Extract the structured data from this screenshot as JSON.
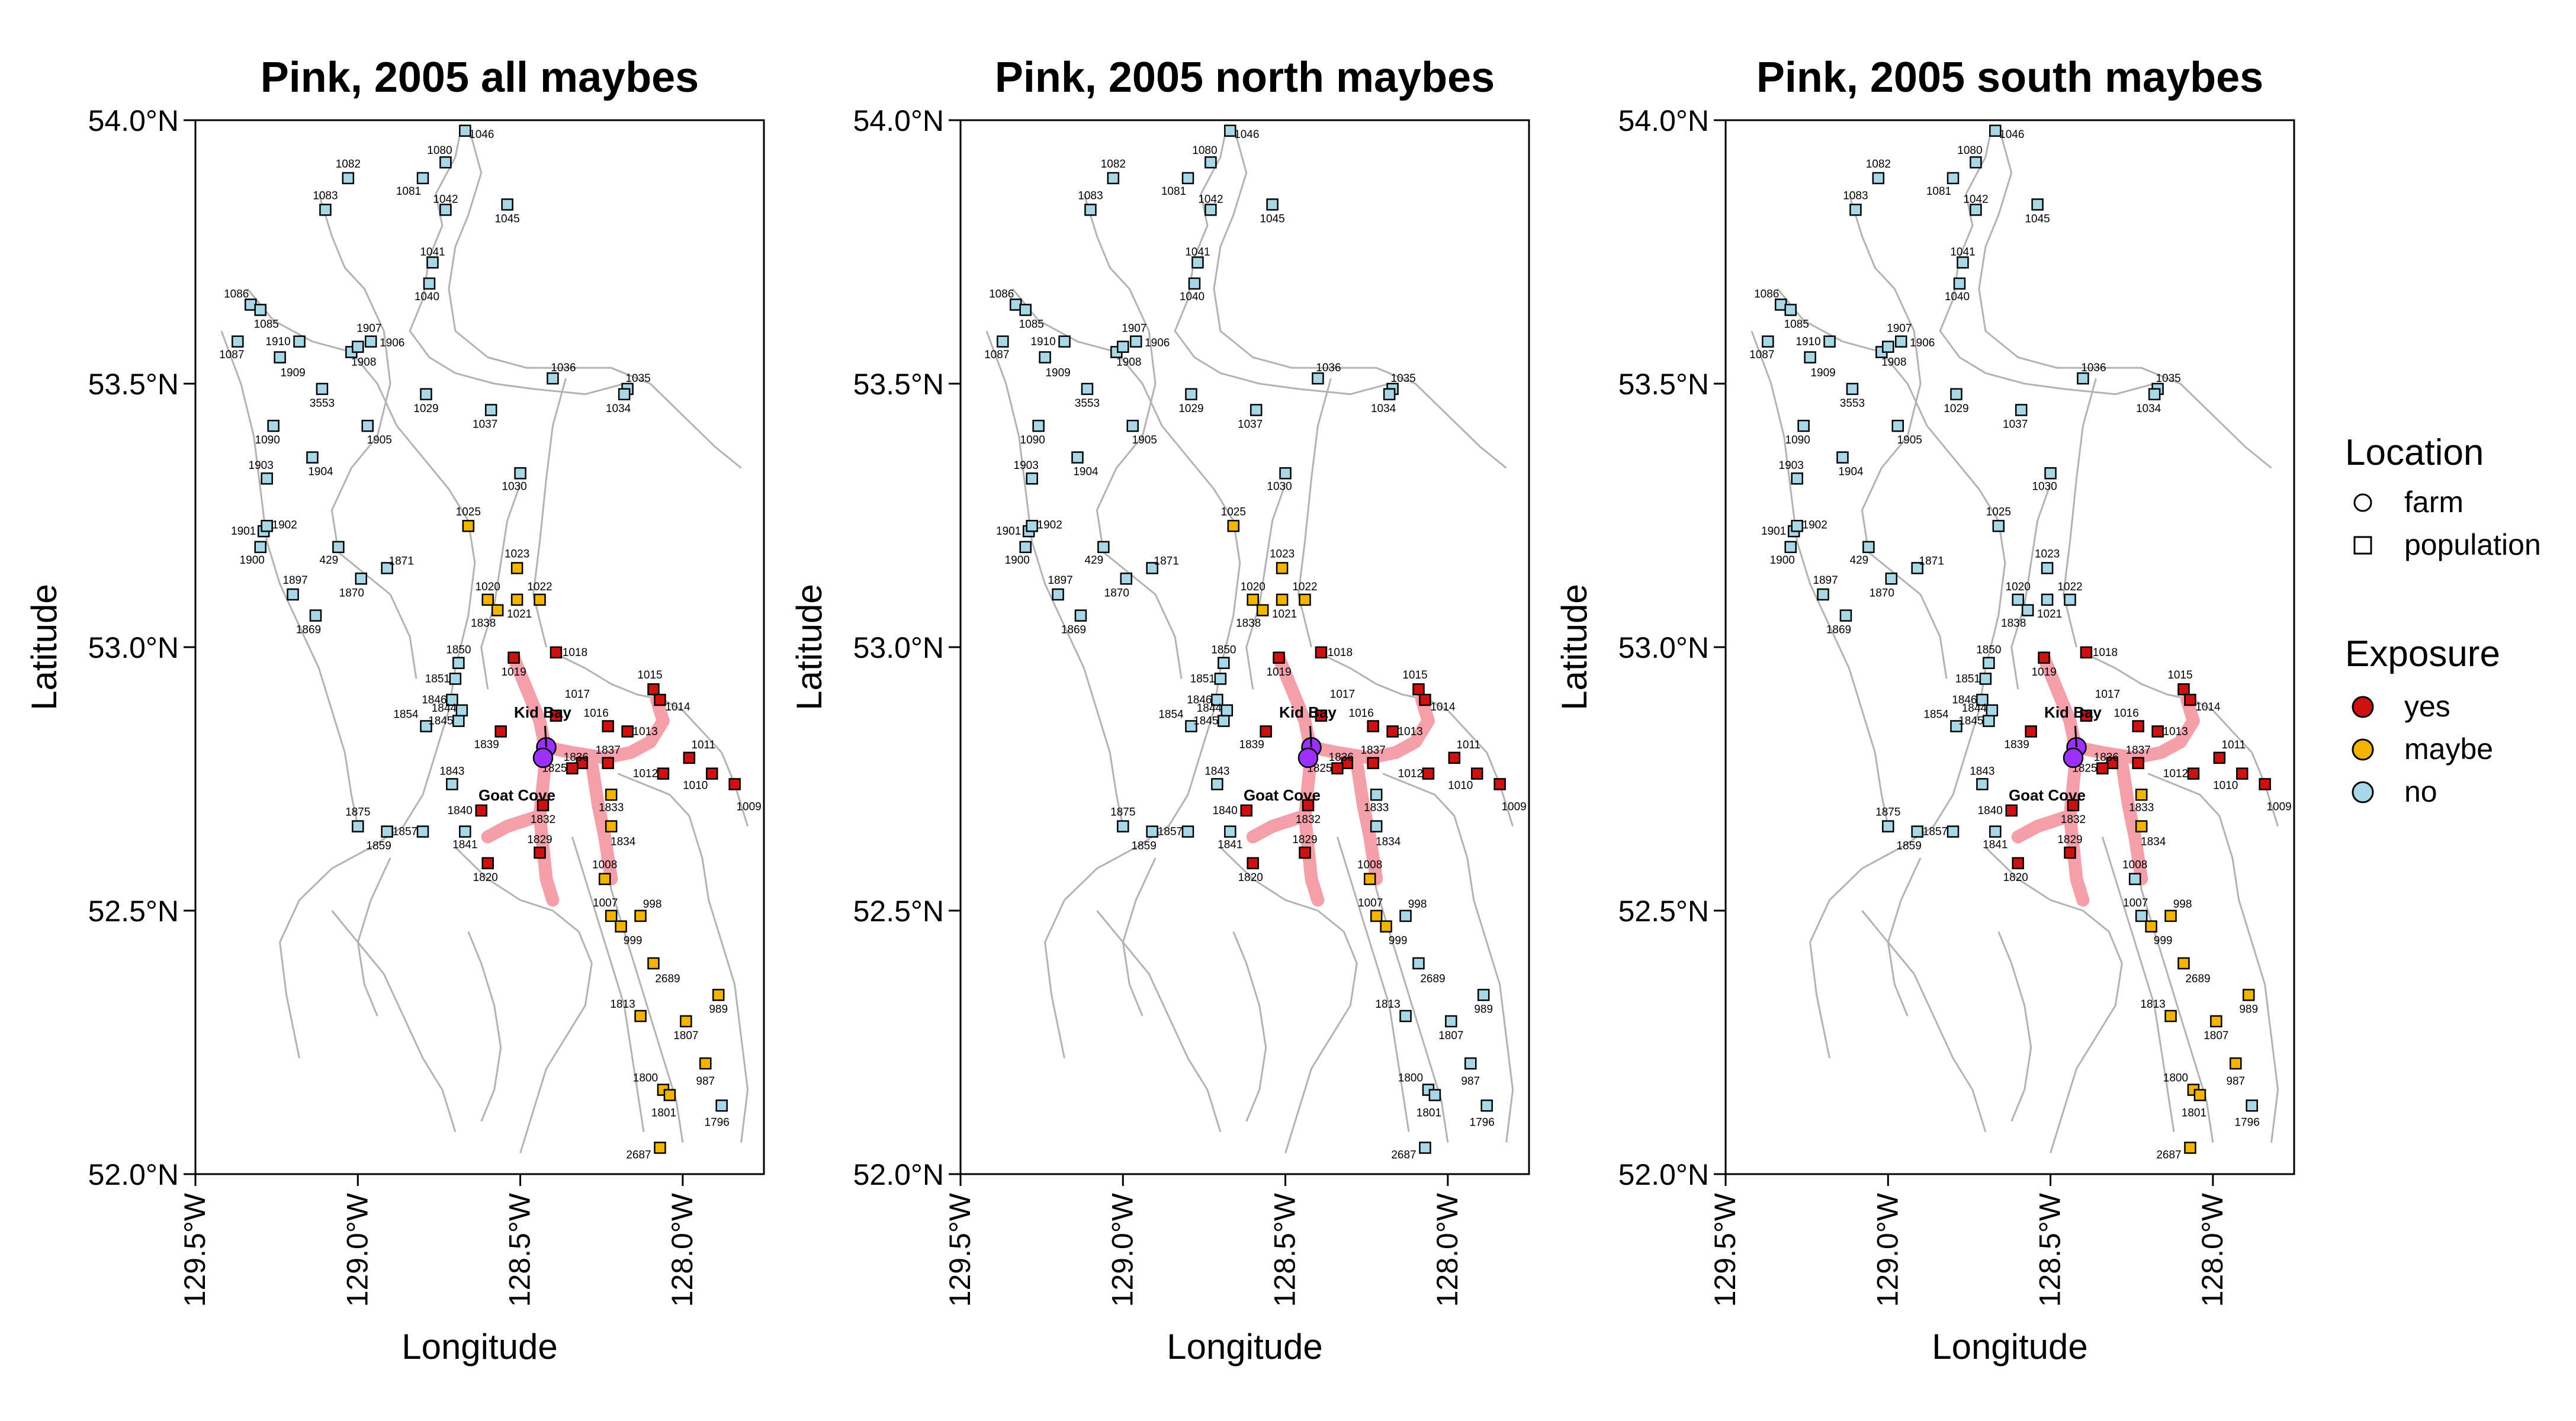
{
  "figure": {
    "axis_x_label": "Longitude",
    "axis_y_label": "Latitude",
    "lat_ticks": [
      {
        "value": 54.0,
        "label": "54.0°N"
      },
      {
        "value": 53.5,
        "label": "53.5°N"
      },
      {
        "value": 53.0,
        "label": "53.0°N"
      },
      {
        "value": 52.5,
        "label": "52.5°N"
      },
      {
        "value": 52.0,
        "label": "52.0°N"
      }
    ],
    "lon_ticks": [
      {
        "value": -129.5,
        "label": "129.5°W"
      },
      {
        "value": -129.0,
        "label": "129.0°W"
      },
      {
        "value": -128.5,
        "label": "128.5°W"
      },
      {
        "value": -128.0,
        "label": "128.0°W"
      }
    ],
    "lon_range": [
      -129.5,
      -127.75
    ],
    "lat_range": [
      52.0,
      54.0
    ]
  },
  "panels": [
    {
      "title": "Pink, 2005 all maybes",
      "maybe_assign": "all"
    },
    {
      "title": "Pink, 2005 north maybes",
      "maybe_assign": "north"
    },
    {
      "title": "Pink, 2005 south maybes",
      "maybe_assign": "south"
    }
  ],
  "legend": {
    "location_title": "Location",
    "location_items": [
      {
        "label": "farm",
        "shape": "circle"
      },
      {
        "label": "population",
        "shape": "square"
      }
    ],
    "exposure_title": "Exposure",
    "exposure_items": [
      {
        "label": "yes",
        "color": "#cc1111"
      },
      {
        "label": "maybe",
        "color": "#f2b400"
      },
      {
        "label": "no",
        "color": "#a8d8e8"
      }
    ]
  },
  "colors": {
    "yes": "#cc1111",
    "maybe": "#f2b400",
    "no": "#a8d8e8",
    "farm": "#9b30ff",
    "route": "#f4a0aa",
    "coast": "#b3b3b3"
  },
  "farms": [
    {
      "name": "Kid Bay",
      "lon": -128.42,
      "lat": 52.81
    },
    {
      "name": "Goat Cove",
      "lon": -128.43,
      "lat": 52.79
    }
  ],
  "sites": [
    {
      "id": "1046",
      "lon": -128.67,
      "lat": 53.98,
      "status": {
        "all": "no",
        "north": "no",
        "south": "no"
      }
    },
    {
      "id": "1080",
      "lon": -128.73,
      "lat": 53.92,
      "status": {
        "all": "no",
        "north": "no",
        "south": "no"
      }
    },
    {
      "id": "1082",
      "lon": -129.03,
      "lat": 53.89,
      "status": {
        "all": "no",
        "north": "no",
        "south": "no"
      }
    },
    {
      "id": "1081",
      "lon": -128.8,
      "lat": 53.89,
      "status": {
        "all": "no",
        "north": "no",
        "south": "no"
      }
    },
    {
      "id": "1083",
      "lon": -129.1,
      "lat": 53.83,
      "status": {
        "all": "no",
        "north": "no",
        "south": "no"
      }
    },
    {
      "id": "1045",
      "lon": -128.54,
      "lat": 53.84,
      "status": {
        "all": "no",
        "north": "no",
        "south": "no"
      }
    },
    {
      "id": "1042",
      "lon": -128.73,
      "lat": 53.83,
      "status": {
        "all": "no",
        "north": "no",
        "south": "no"
      }
    },
    {
      "id": "1041",
      "lon": -128.77,
      "lat": 53.73,
      "status": {
        "all": "no",
        "north": "no",
        "south": "no"
      }
    },
    {
      "id": "1040",
      "lon": -128.78,
      "lat": 53.69,
      "status": {
        "all": "no",
        "north": "no",
        "south": "no"
      }
    },
    {
      "id": "1086",
      "lon": -129.33,
      "lat": 53.65,
      "status": {
        "all": "no",
        "north": "no",
        "south": "no"
      }
    },
    {
      "id": "1085",
      "lon": -129.3,
      "lat": 53.64,
      "status": {
        "all": "no",
        "north": "no",
        "south": "no"
      }
    },
    {
      "id": "1087",
      "lon": -129.37,
      "lat": 53.58,
      "status": {
        "all": "no",
        "north": "no",
        "south": "no"
      }
    },
    {
      "id": "1910",
      "lon": -129.18,
      "lat": 53.58,
      "status": {
        "all": "no",
        "north": "no",
        "south": "no"
      }
    },
    {
      "id": "1909",
      "lon": -129.24,
      "lat": 53.55,
      "status": {
        "all": "no",
        "north": "no",
        "south": "no"
      }
    },
    {
      "id": "1907",
      "lon": -129.02,
      "lat": 53.56,
      "status": {
        "all": "no",
        "north": "no",
        "south": "no"
      }
    },
    {
      "id": "1906",
      "lon": -128.96,
      "lat": 53.58,
      "status": {
        "all": "no",
        "north": "no",
        "south": "no"
      }
    },
    {
      "id": "1908",
      "lon": -129.0,
      "lat": 53.57,
      "status": {
        "all": "no",
        "north": "no",
        "south": "no"
      }
    },
    {
      "id": "3553",
      "lon": -129.11,
      "lat": 53.49,
      "status": {
        "all": "no",
        "north": "no",
        "south": "no"
      }
    },
    {
      "id": "1029",
      "lon": -128.79,
      "lat": 53.48,
      "status": {
        "all": "no",
        "north": "no",
        "south": "no"
      }
    },
    {
      "id": "1036",
      "lon": -128.4,
      "lat": 53.51,
      "status": {
        "all": "no",
        "north": "no",
        "south": "no"
      }
    },
    {
      "id": "1035",
      "lon": -128.17,
      "lat": 53.49,
      "status": {
        "all": "no",
        "north": "no",
        "south": "no"
      }
    },
    {
      "id": "1034",
      "lon": -128.18,
      "lat": 53.48,
      "status": {
        "all": "no",
        "north": "no",
        "south": "no"
      }
    },
    {
      "id": "1037",
      "lon": -128.59,
      "lat": 53.45,
      "status": {
        "all": "no",
        "north": "no",
        "south": "no"
      }
    },
    {
      "id": "1090",
      "lon": -129.26,
      "lat": 53.42,
      "status": {
        "all": "no",
        "north": "no",
        "south": "no"
      }
    },
    {
      "id": "1905",
      "lon": -128.97,
      "lat": 53.42,
      "status": {
        "all": "no",
        "north": "no",
        "south": "no"
      }
    },
    {
      "id": "1904",
      "lon": -129.14,
      "lat": 53.36,
      "status": {
        "all": "no",
        "north": "no",
        "south": "no"
      }
    },
    {
      "id": "1030",
      "lon": -128.5,
      "lat": 53.33,
      "status": {
        "all": "no",
        "north": "no",
        "south": "no"
      }
    },
    {
      "id": "1903",
      "lon": -129.28,
      "lat": 53.32,
      "status": {
        "all": "no",
        "north": "no",
        "south": "no"
      }
    },
    {
      "id": "1025",
      "lon": -128.66,
      "lat": 53.23,
      "status": {
        "all": "maybe",
        "north": "maybe",
        "south": "no"
      }
    },
    {
      "id": "1901",
      "lon": -129.29,
      "lat": 53.22,
      "status": {
        "all": "no",
        "north": "no",
        "south": "no"
      }
    },
    {
      "id": "1902",
      "lon": -129.28,
      "lat": 53.23,
      "status": {
        "all": "no",
        "north": "no",
        "south": "no"
      }
    },
    {
      "id": "1900",
      "lon": -129.3,
      "lat": 53.19,
      "status": {
        "all": "no",
        "north": "no",
        "south": "no"
      }
    },
    {
      "id": "429",
      "lon": -129.06,
      "lat": 53.19,
      "status": {
        "all": "no",
        "north": "no",
        "south": "no"
      }
    },
    {
      "id": "1871",
      "lon": -128.91,
      "lat": 53.15,
      "status": {
        "all": "no",
        "north": "no",
        "south": "no"
      }
    },
    {
      "id": "1870",
      "lon": -128.99,
      "lat": 53.13,
      "status": {
        "all": "no",
        "north": "no",
        "south": "no"
      }
    },
    {
      "id": "1023",
      "lon": -128.51,
      "lat": 53.15,
      "status": {
        "all": "maybe",
        "north": "maybe",
        "south": "no"
      }
    },
    {
      "id": "1897",
      "lon": -129.2,
      "lat": 53.1,
      "status": {
        "all": "no",
        "north": "no",
        "south": "no"
      }
    },
    {
      "id": "1020",
      "lon": -128.6,
      "lat": 53.09,
      "status": {
        "all": "maybe",
        "north": "maybe",
        "south": "no"
      }
    },
    {
      "id": "1022",
      "lon": -128.44,
      "lat": 53.09,
      "status": {
        "all": "maybe",
        "north": "maybe",
        "south": "no"
      }
    },
    {
      "id": "1021",
      "lon": -128.51,
      "lat": 53.09,
      "status": {
        "all": "maybe",
        "north": "maybe",
        "south": "no"
      }
    },
    {
      "id": "1838",
      "lon": -128.57,
      "lat": 53.07,
      "status": {
        "all": "maybe",
        "north": "maybe",
        "south": "no"
      }
    },
    {
      "id": "1869",
      "lon": -129.13,
      "lat": 53.06,
      "status": {
        "all": "no",
        "north": "no",
        "south": "no"
      }
    },
    {
      "id": "1018",
      "lon": -128.39,
      "lat": 52.99,
      "status": {
        "all": "yes",
        "north": "yes",
        "south": "yes"
      }
    },
    {
      "id": "1850",
      "lon": -128.69,
      "lat": 52.97,
      "status": {
        "all": "no",
        "north": "no",
        "south": "no"
      }
    },
    {
      "id": "1019",
      "lon": -128.52,
      "lat": 52.98,
      "status": {
        "all": "yes",
        "north": "yes",
        "south": "yes"
      }
    },
    {
      "id": "1851",
      "lon": -128.7,
      "lat": 52.94,
      "status": {
        "all": "no",
        "north": "no",
        "south": "no"
      }
    },
    {
      "id": "1015",
      "lon": -128.09,
      "lat": 52.92,
      "status": {
        "all": "yes",
        "north": "yes",
        "south": "yes"
      }
    },
    {
      "id": "1014",
      "lon": -128.07,
      "lat": 52.9,
      "status": {
        "all": "yes",
        "north": "yes",
        "south": "yes"
      }
    },
    {
      "id": "1017",
      "lon": -128.39,
      "lat": 52.87,
      "status": {
        "all": "yes",
        "north": "yes",
        "south": "yes"
      }
    },
    {
      "id": "1846",
      "lon": -128.71,
      "lat": 52.9,
      "status": {
        "all": "no",
        "north": "no",
        "south": "no"
      }
    },
    {
      "id": "1854",
      "lon": -128.79,
      "lat": 52.85,
      "status": {
        "all": "no",
        "north": "no",
        "south": "no"
      }
    },
    {
      "id": "1845",
      "lon": -128.69,
      "lat": 52.86,
      "status": {
        "all": "no",
        "north": "no",
        "south": "no"
      }
    },
    {
      "id": "1839",
      "lon": -128.56,
      "lat": 52.84,
      "status": {
        "all": "yes",
        "north": "yes",
        "south": "yes"
      }
    },
    {
      "id": "1016",
      "lon": -128.23,
      "lat": 52.85,
      "status": {
        "all": "yes",
        "north": "yes",
        "south": "yes"
      }
    },
    {
      "id": "1013",
      "lon": -128.17,
      "lat": 52.84,
      "status": {
        "all": "yes",
        "north": "yes",
        "south": "yes"
      }
    },
    {
      "id": "1844",
      "lon": -128.68,
      "lat": 52.88,
      "status": {
        "all": "no",
        "north": "no",
        "south": "no"
      }
    },
    {
      "id": "1836",
      "lon": -128.31,
      "lat": 52.78,
      "status": {
        "all": "yes",
        "north": "yes",
        "south": "yes"
      }
    },
    {
      "id": "1837",
      "lon": -128.23,
      "lat": 52.78,
      "status": {
        "all": "yes",
        "north": "yes",
        "south": "yes"
      }
    },
    {
      "id": "1011",
      "lon": -127.98,
      "lat": 52.79,
      "status": {
        "all": "yes",
        "north": "yes",
        "south": "yes"
      }
    },
    {
      "id": "1012",
      "lon": -128.06,
      "lat": 52.76,
      "status": {
        "all": "yes",
        "north": "yes",
        "south": "yes"
      }
    },
    {
      "id": "1825",
      "lon": -128.34,
      "lat": 52.77,
      "status": {
        "all": "yes",
        "north": "yes",
        "south": "yes"
      }
    },
    {
      "id": "1010",
      "lon": -127.91,
      "lat": 52.76,
      "status": {
        "all": "yes",
        "north": "yes",
        "south": "yes"
      }
    },
    {
      "id": "1009",
      "lon": -127.84,
      "lat": 52.74,
      "status": {
        "all": "yes",
        "north": "yes",
        "south": "yes"
      }
    },
    {
      "id": "1843",
      "lon": -128.71,
      "lat": 52.74,
      "status": {
        "all": "no",
        "north": "no",
        "south": "no"
      }
    },
    {
      "id": "1833",
      "lon": -128.22,
      "lat": 52.72,
      "status": {
        "all": "maybe",
        "north": "no",
        "south": "maybe"
      }
    },
    {
      "id": "1832",
      "lon": -128.43,
      "lat": 52.7,
      "status": {
        "all": "yes",
        "north": "yes",
        "south": "yes"
      }
    },
    {
      "id": "1840",
      "lon": -128.62,
      "lat": 52.69,
      "status": {
        "all": "yes",
        "north": "yes",
        "south": "yes"
      }
    },
    {
      "id": "1875",
      "lon": -129.0,
      "lat": 52.66,
      "status": {
        "all": "no",
        "north": "no",
        "south": "no"
      }
    },
    {
      "id": "1857",
      "lon": -128.8,
      "lat": 52.65,
      "status": {
        "all": "no",
        "north": "no",
        "south": "no"
      }
    },
    {
      "id": "1859",
      "lon": -128.91,
      "lat": 52.65,
      "status": {
        "all": "no",
        "north": "no",
        "south": "no"
      }
    },
    {
      "id": "1841",
      "lon": -128.67,
      "lat": 52.65,
      "status": {
        "all": "no",
        "north": "no",
        "south": "no"
      }
    },
    {
      "id": "1834",
      "lon": -128.22,
      "lat": 52.66,
      "status": {
        "all": "maybe",
        "north": "no",
        "south": "maybe"
      }
    },
    {
      "id": "1829",
      "lon": -128.44,
      "lat": 52.61,
      "status": {
        "all": "yes",
        "north": "yes",
        "south": "yes"
      }
    },
    {
      "id": "1008",
      "lon": -128.24,
      "lat": 52.56,
      "status": {
        "all": "maybe",
        "north": "maybe",
        "south": "no"
      }
    },
    {
      "id": "1820",
      "lon": -128.6,
      "lat": 52.59,
      "status": {
        "all": "yes",
        "north": "yes",
        "south": "yes"
      }
    },
    {
      "id": "1007",
      "lon": -128.22,
      "lat": 52.49,
      "status": {
        "all": "maybe",
        "north": "maybe",
        "south": "no"
      }
    },
    {
      "id": "998",
      "lon": -128.13,
      "lat": 52.49,
      "status": {
        "all": "maybe",
        "north": "no",
        "south": "maybe"
      }
    },
    {
      "id": "999",
      "lon": -128.19,
      "lat": 52.47,
      "status": {
        "all": "maybe",
        "north": "maybe",
        "south": "maybe"
      }
    },
    {
      "id": "2689",
      "lon": -128.09,
      "lat": 52.4,
      "status": {
        "all": "maybe",
        "north": "no",
        "south": "maybe"
      }
    },
    {
      "id": "1813",
      "lon": -128.13,
      "lat": 52.3,
      "status": {
        "all": "maybe",
        "north": "no",
        "south": "maybe"
      }
    },
    {
      "id": "989",
      "lon": -127.89,
      "lat": 52.34,
      "status": {
        "all": "maybe",
        "north": "no",
        "south": "maybe"
      }
    },
    {
      "id": "1807",
      "lon": -127.99,
      "lat": 52.29,
      "status": {
        "all": "maybe",
        "north": "no",
        "south": "maybe"
      }
    },
    {
      "id": "987",
      "lon": -127.93,
      "lat": 52.21,
      "status": {
        "all": "maybe",
        "north": "no",
        "south": "maybe"
      }
    },
    {
      "id": "1800",
      "lon": -128.06,
      "lat": 52.16,
      "status": {
        "all": "maybe",
        "north": "no",
        "south": "maybe"
      }
    },
    {
      "id": "1801",
      "lon": -128.04,
      "lat": 52.15,
      "status": {
        "all": "maybe",
        "north": "no",
        "south": "maybe"
      }
    },
    {
      "id": "1796",
      "lon": -127.88,
      "lat": 52.13,
      "status": {
        "all": "no",
        "north": "no",
        "south": "no"
      }
    },
    {
      "id": "2687",
      "lon": -128.07,
      "lat": 52.05,
      "status": {
        "all": "maybe",
        "north": "no",
        "south": "maybe"
      }
    }
  ]
}
